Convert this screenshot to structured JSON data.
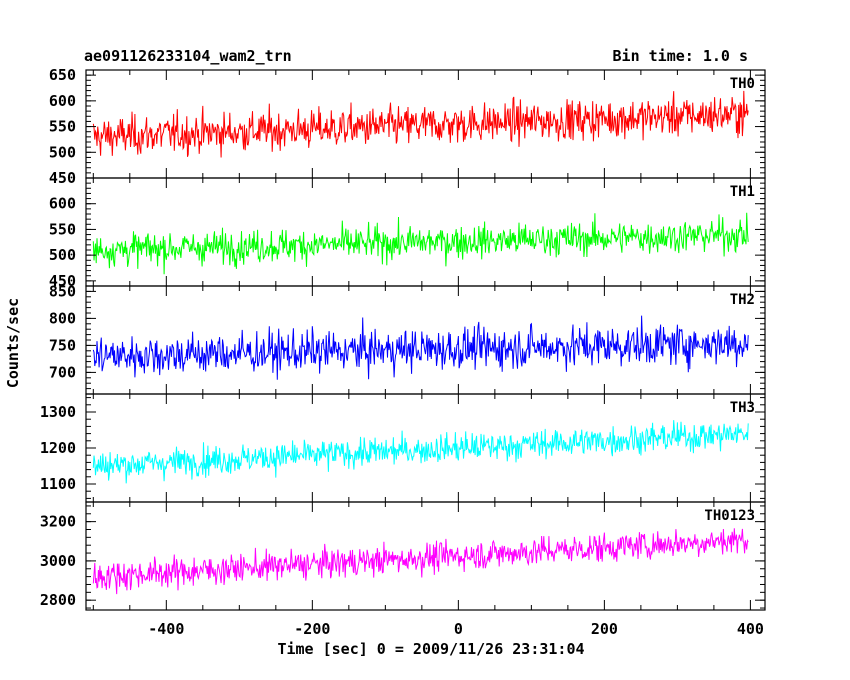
{
  "chart_data": {
    "type": "line",
    "title": "ae091126233104_wam2_trn",
    "subtitle": "Bin time: 1.0 s",
    "xlabel": "Time [sec] 0 = 2009/11/26 23:31:04",
    "ylabel": "Counts/sec",
    "xlim": [
      -510,
      420
    ],
    "xticks": [
      -400,
      -200,
      0,
      200,
      400
    ],
    "x_start": -500,
    "x_end": 397,
    "bin": 1.0,
    "panels": [
      {
        "name": "TH0",
        "color": "#ff0000",
        "ylim": [
          450,
          660
        ],
        "yticks": [
          450,
          500,
          550,
          600,
          650
        ],
        "mean_start": 530,
        "mean_end": 575,
        "spread": 36
      },
      {
        "name": "TH1",
        "color": "#00ff00",
        "ylim": [
          440,
          650
        ],
        "yticks": [
          450,
          500,
          550,
          600
        ],
        "mean_start": 510,
        "mean_end": 540,
        "spread": 30
      },
      {
        "name": "TH2",
        "color": "#0000ff",
        "ylim": [
          660,
          860
        ],
        "yticks": [
          700,
          750,
          800,
          850
        ],
        "mean_start": 730,
        "mean_end": 755,
        "spread": 36
      },
      {
        "name": "TH3",
        "color": "#00ffff",
        "ylim": [
          1050,
          1350
        ],
        "yticks": [
          1100,
          1200,
          1300
        ],
        "mean_start": 1150,
        "mean_end": 1240,
        "spread": 38
      },
      {
        "name": "TH0123",
        "color": "#ff00ff",
        "ylim": [
          2750,
          3300
        ],
        "yticks": [
          2800,
          3000,
          3200
        ],
        "mean_start": 2920,
        "mean_end": 3110,
        "spread": 70
      }
    ]
  }
}
